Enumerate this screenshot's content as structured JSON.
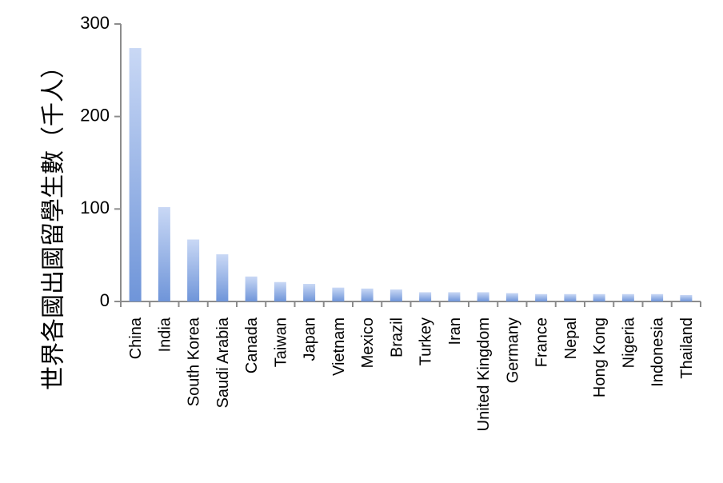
{
  "chart_data": {
    "type": "bar",
    "title": "",
    "xlabel": "",
    "ylabel": "世界各國出國留學生數（千人）",
    "ylim": [
      0,
      300
    ],
    "yticks": [
      "0",
      "100",
      "200",
      "300"
    ],
    "grid": false,
    "legend": "none",
    "bar_color_top": "#c9d8f5",
    "bar_color_bottom": "#6f95d9",
    "categories": [
      "China",
      "India",
      "South Korea",
      "Saudi Arabia",
      "Canada",
      "Taiwan",
      "Japan",
      "Vietnam",
      "Mexico",
      "Brazil",
      "Turkey",
      "Iran",
      "United Kingdom",
      "Germany",
      "France",
      "Nepal",
      "Hong Kong",
      "Nigeria",
      "Indonesia",
      "Thailand"
    ],
    "values": [
      274,
      102,
      67,
      51,
      27,
      21,
      19,
      15,
      14,
      13,
      10,
      10,
      10,
      9,
      8,
      8,
      8,
      8,
      8,
      7
    ]
  }
}
